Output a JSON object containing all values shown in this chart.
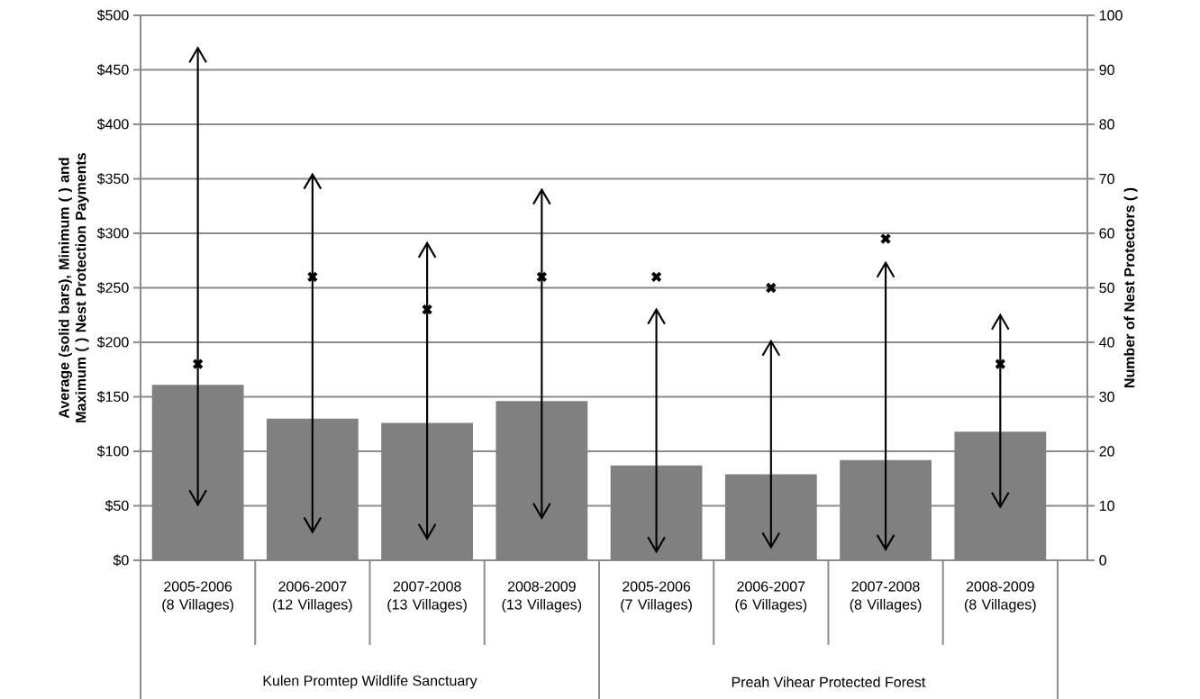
{
  "chart_data": {
    "type": "bar",
    "ylabel": "Average (solid bars), Minimum ( ) and Maximum ( ) Nest Protection Payments",
    "y2label": "Number of Nest Protectors ( )",
    "categories": [
      "2005-2006 (8 Villages)",
      "2006-2007 (12 Villages)",
      "2007-2008 (13 Villages)",
      "2008-2009 (13 Villages)",
      "2005-2006 (7 Villages)",
      "2006-2007 (6 Villages)",
      "2007-2008 (8 Villages)",
      "2008-2009 (8 Villages)"
    ],
    "annotations": [
      "Kulen Promtep Wildlife Sanctuary",
      "Preah Vihear Protected Forest"
    ],
    "ylim": [
      0,
      500
    ],
    "yticks": [
      {
        "value": 0,
        "label": "$0"
      },
      {
        "value": 50,
        "label": "$50"
      },
      {
        "value": 100,
        "label": "$100"
      },
      {
        "value": 150,
        "label": "$150"
      },
      {
        "value": 200,
        "label": "$200"
      },
      {
        "value": 250,
        "label": "$250"
      },
      {
        "value": 300,
        "label": "$300"
      },
      {
        "value": 350,
        "label": "$350"
      },
      {
        "value": 400,
        "label": "$400"
      },
      {
        "value": 450,
        "label": "$450"
      },
      {
        "value": 500,
        "label": "$500"
      }
    ],
    "y2lim": [
      0,
      100
    ],
    "y2ticks": [
      0,
      10,
      20,
      30,
      40,
      50,
      60,
      70,
      80,
      90,
      100
    ],
    "grid": "y",
    "series": [
      {
        "color": "#808080",
        "values": [
          161,
          130,
          126,
          146,
          87,
          79,
          92,
          118
        ],
        "errors": [
          [
            51,
            470
          ],
          [
            26,
            354
          ],
          [
            20,
            291
          ],
          [
            39,
            340
          ],
          [
            8,
            230
          ],
          [
            12,
            201
          ],
          [
            10,
            273
          ],
          [
            49,
            225
          ]
        ]
      },
      {
        "type": "scatter",
        "axis": "y2",
        "marker": "cross",
        "color": "#000000",
        "values": [
          36,
          52,
          46,
          52,
          52,
          50,
          59,
          36
        ]
      }
    ]
  }
}
